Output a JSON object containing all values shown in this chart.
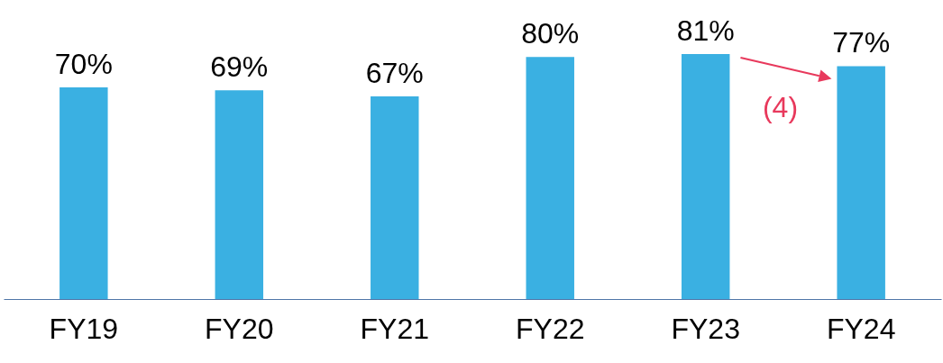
{
  "chart_data": {
    "type": "bar",
    "categories": [
      "FY19",
      "FY20",
      "FY21",
      "FY22",
      "FY23",
      "FY24"
    ],
    "values": [
      70,
      69,
      67,
      80,
      81,
      77
    ],
    "color": "#3ab0e2",
    "value_labels": [
      "70%",
      "69%",
      "67%",
      "80%",
      "81%",
      "77%"
    ],
    "annotations": [
      "(4)"
    ]
  }
}
